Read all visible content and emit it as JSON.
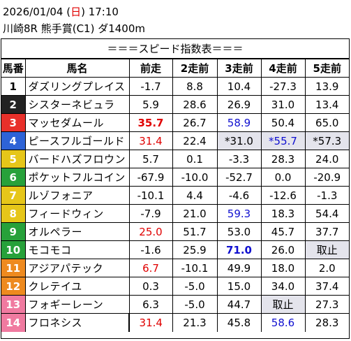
{
  "header": {
    "date_prefix": "2026/01/04 (",
    "weekday": "日",
    "date_suffix": ") 17:10",
    "race": "川崎8R 熊手賞(C1) ダ1400m"
  },
  "subtitle": "＝＝＝スピード指数表＝＝＝",
  "columns": [
    "馬番",
    "馬名",
    "前走",
    "2走前",
    "3走前",
    "4走前",
    "5走前"
  ],
  "colors": {
    "frame1": "#ffffff",
    "frame2": "#222222",
    "frame3": "#e8302a",
    "frame4": "#2e63d6",
    "frame5": "#e6c619",
    "frame6": "#27a13a",
    "frame7": "#ee8a1f",
    "frame8": "#f07aa0"
  },
  "rows": [
    {
      "no": "1",
      "name": "ダズリングプレイス",
      "v": [
        "-1.7",
        "8.8",
        "10.4",
        "-27.3",
        "13.9"
      ]
    },
    {
      "no": "2",
      "name": "シスターネビュラ",
      "v": [
        "5.9",
        "28.6",
        "26.9",
        "31.0",
        "13.4"
      ]
    },
    {
      "no": "3",
      "name": "マッセダムール",
      "v": [
        "35.7",
        "26.7",
        "58.9",
        "50.4",
        "65.0"
      ]
    },
    {
      "no": "4",
      "name": "ピースフルゴールド",
      "v": [
        "31.4",
        "22.4",
        "*31.0",
        "*55.7",
        "*57.3"
      ]
    },
    {
      "no": "5",
      "name": "バードハズフロウン",
      "v": [
        "5.7",
        "0.1",
        "-3.3",
        "28.3",
        "24.0"
      ]
    },
    {
      "no": "6",
      "name": "ポケットフルコイン",
      "v": [
        "-67.9",
        "-10.0",
        "-52.7",
        "0.0",
        "-20.9"
      ]
    },
    {
      "no": "7",
      "name": "ルゾフォニア",
      "v": [
        "-10.1",
        "4.4",
        "-4.6",
        "-12.6",
        "-1.3"
      ]
    },
    {
      "no": "8",
      "name": "フィードウィン",
      "v": [
        "-7.9",
        "21.0",
        "59.3",
        "18.3",
        "54.4"
      ]
    },
    {
      "no": "9",
      "name": "オルペラー",
      "v": [
        "25.0",
        "51.7",
        "53.0",
        "45.7",
        "37.7"
      ]
    },
    {
      "no": "10",
      "name": "モコモコ",
      "v": [
        "-1.6",
        "25.9",
        "71.0",
        "26.0",
        "取止"
      ]
    },
    {
      "no": "11",
      "name": "アジアパテック",
      "v": [
        "6.7",
        "-10.1",
        "49.9",
        "18.0",
        "2.0"
      ]
    },
    {
      "no": "12",
      "name": "クレテイユ",
      "v": [
        "0.3",
        "-5.0",
        "15.0",
        "34.0",
        "37.4"
      ]
    },
    {
      "no": "13",
      "name": "フォギーレーン",
      "v": [
        "6.3",
        "-5.0",
        "44.7",
        "取止",
        "27.3"
      ]
    },
    {
      "no": "14",
      "name": "フロネシス",
      "v": [
        "31.4",
        "21.3",
        "45.8",
        "58.6",
        "28.3"
      ]
    }
  ]
}
